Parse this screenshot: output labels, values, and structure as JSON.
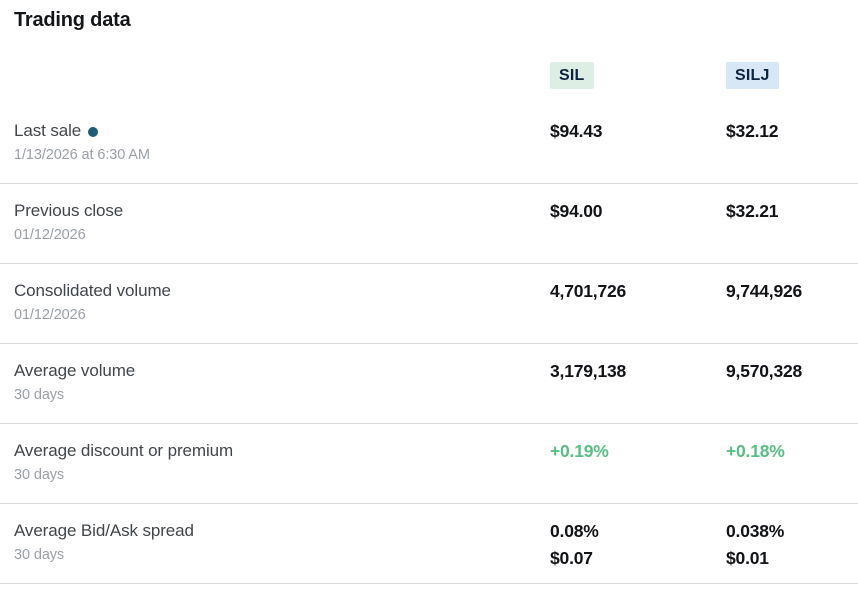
{
  "page": {
    "title": "Trading data"
  },
  "columns": [
    {
      "ticker": "SIL"
    },
    {
      "ticker": "SILJ"
    }
  ],
  "rows": [
    {
      "label": "Last sale",
      "sublabel": "1/13/2026 at 6:30 AM",
      "sil": "$94.43",
      "silj": "$32.12"
    },
    {
      "label": "Previous close",
      "sublabel": "01/12/2026",
      "sil": "$94.00",
      "silj": "$32.21"
    },
    {
      "label": "Consolidated volume",
      "sublabel": "01/12/2026",
      "sil": "4,701,726",
      "silj": "9,744,926"
    },
    {
      "label": "Average volume",
      "sublabel": "30 days",
      "sil": "3,179,138",
      "silj": "9,570,328"
    },
    {
      "label": "Average discount or premium",
      "sublabel": "30 days",
      "sil": "+0.19%",
      "silj": "+0.18%"
    },
    {
      "label": "Average Bid/Ask spread",
      "sublabel": "30 days",
      "sil": "0.08%",
      "sil_line2": "$0.07",
      "silj": "0.038%",
      "silj_line2": "$0.01"
    }
  ],
  "colors": {
    "sil_badge_bg": "#ddeee5",
    "silj_badge_bg": "#d7e7f5",
    "badge_text": "#0c2340",
    "positive_green": "#58be85",
    "dot_teal": "#1f5c77",
    "divider": "#d9d9d9"
  }
}
